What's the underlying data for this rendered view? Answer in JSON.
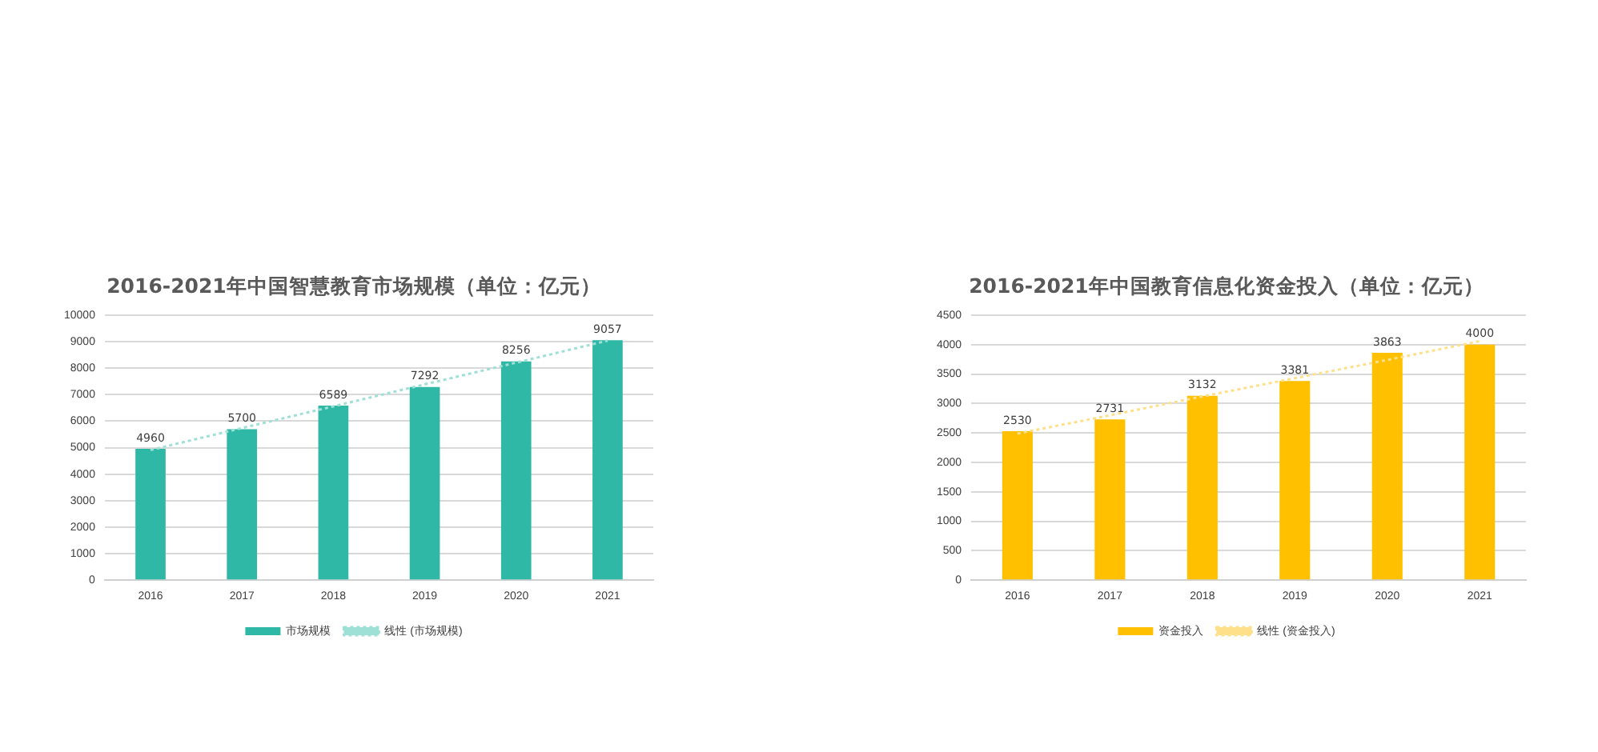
{
  "chart_data": [
    {
      "type": "bar",
      "title": "2016-2021年中国智慧教育市场规模（单位：亿元）",
      "categories": [
        "2016",
        "2017",
        "2018",
        "2019",
        "2020",
        "2021"
      ],
      "series": [
        {
          "name": "市场规模",
          "color": "#2fb8a6",
          "values": [
            4960,
            5700,
            6589,
            7292,
            8256,
            9057
          ],
          "value_labels": [
            "4960",
            "5700",
            "6589",
            "7292",
            "8256",
            "9057"
          ]
        },
        {
          "name": "线性 (市场规模)",
          "type": "line",
          "color": "#9fe0d6",
          "values": [
            4910,
            5740,
            6560,
            7390,
            8210,
            9040
          ],
          "line_style": "dotted",
          "marker": "none"
        }
      ],
      "ylim": [
        0,
        10000
      ],
      "yticks": [
        0,
        1000,
        2000,
        3000,
        4000,
        5000,
        6000,
        7000,
        8000,
        9000,
        10000
      ],
      "grid": "y",
      "legend": "bottom"
    },
    {
      "type": "bar",
      "title": "2016-2021年中国教育信息化资金投入（单位：亿元）",
      "categories": [
        "2016",
        "2017",
        "2018",
        "2019",
        "2020",
        "2021"
      ],
      "series": [
        {
          "name": "资金投入",
          "color": "#ffc000",
          "values": [
            2530,
            2731,
            3132,
            3381,
            3863,
            4000
          ],
          "value_labels": [
            "2530",
            "2731",
            "3132",
            "3381",
            "3863",
            "4000"
          ]
        },
        {
          "name": "线性 (资金投入)",
          "type": "line",
          "color": "#ffe08a",
          "values": [
            2490,
            2800,
            3120,
            3430,
            3740,
            4060
          ],
          "line_style": "dotted",
          "marker": "none"
        }
      ],
      "ylim": [
        0,
        4500
      ],
      "yticks": [
        0,
        500,
        1000,
        1500,
        2000,
        2500,
        3000,
        3500,
        4000,
        4500
      ],
      "grid": "y",
      "legend": "bottom"
    }
  ]
}
